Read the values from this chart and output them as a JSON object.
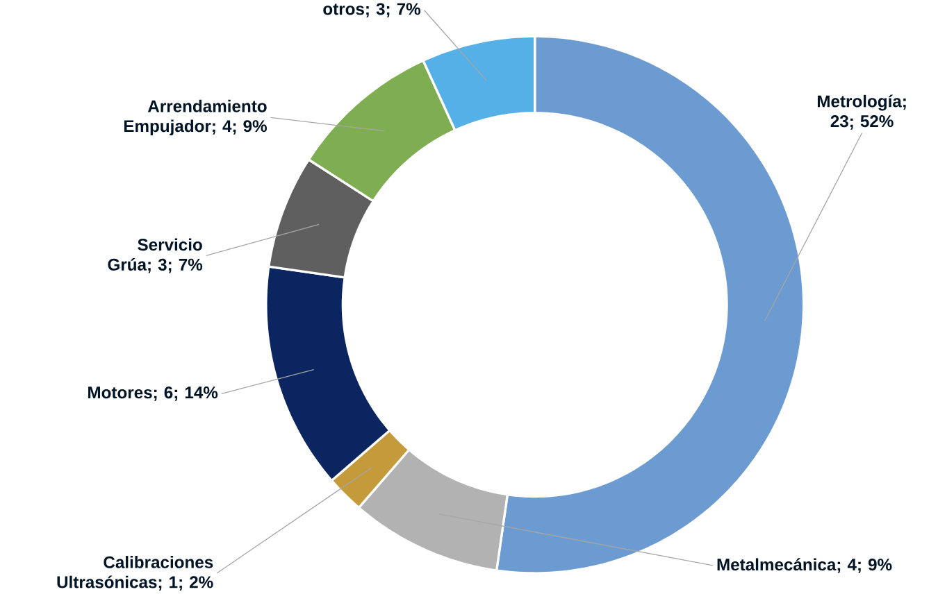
{
  "chart_data": {
    "type": "donut",
    "categories": [
      "Metrología; 23; 52%",
      "Metalmecánica; 4; 9%",
      "Calibraciones Ultrasónicas; 1; 2%",
      "Motores; 6; 14%",
      "Servicio Grúa; 3; 7%",
      "Arrendamiento Empujador; 4; 9%",
      "otros; 3; 7%"
    ],
    "values": [
      23,
      4,
      1,
      6,
      3,
      4,
      3
    ],
    "colors": [
      "#6b9bd1",
      "#b2b2b2",
      "#c49a3a",
      "#0b2560",
      "#5f5f5f",
      "#7fae52",
      "#56b0e8"
    ]
  }
}
